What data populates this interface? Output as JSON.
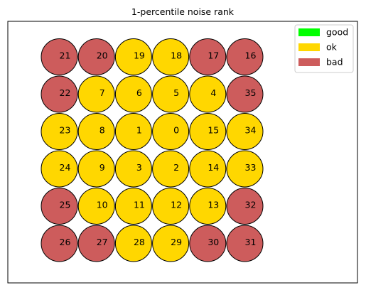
{
  "chart_data": {
    "type": "scatter",
    "title": "1-percentile noise rank",
    "xlabel": "",
    "ylabel": "",
    "grid": false,
    "legend_position": "top-right",
    "categories": [
      "good",
      "ok",
      "bad"
    ],
    "colors": {
      "good": "#00ff00",
      "ok": "#ffd700",
      "bad": "#cd5c5c"
    },
    "legend": [
      {
        "label": "good",
        "status": "good"
      },
      {
        "label": "ok",
        "status": "ok"
      },
      {
        "label": "bad",
        "status": "bad"
      }
    ],
    "grid_cols": 6,
    "grid_rows": 6,
    "cells": [
      {
        "id": "21",
        "row": 0,
        "col": 0,
        "status": "bad"
      },
      {
        "id": "20",
        "row": 0,
        "col": 1,
        "status": "bad"
      },
      {
        "id": "19",
        "row": 0,
        "col": 2,
        "status": "ok"
      },
      {
        "id": "18",
        "row": 0,
        "col": 3,
        "status": "ok"
      },
      {
        "id": "17",
        "row": 0,
        "col": 4,
        "status": "bad"
      },
      {
        "id": "16",
        "row": 0,
        "col": 5,
        "status": "bad"
      },
      {
        "id": "22",
        "row": 1,
        "col": 0,
        "status": "bad"
      },
      {
        "id": "7",
        "row": 1,
        "col": 1,
        "status": "ok"
      },
      {
        "id": "6",
        "row": 1,
        "col": 2,
        "status": "ok"
      },
      {
        "id": "5",
        "row": 1,
        "col": 3,
        "status": "ok"
      },
      {
        "id": "4",
        "row": 1,
        "col": 4,
        "status": "ok"
      },
      {
        "id": "35",
        "row": 1,
        "col": 5,
        "status": "bad"
      },
      {
        "id": "23",
        "row": 2,
        "col": 0,
        "status": "ok"
      },
      {
        "id": "8",
        "row": 2,
        "col": 1,
        "status": "ok"
      },
      {
        "id": "1",
        "row": 2,
        "col": 2,
        "status": "ok"
      },
      {
        "id": "0",
        "row": 2,
        "col": 3,
        "status": "ok"
      },
      {
        "id": "15",
        "row": 2,
        "col": 4,
        "status": "ok"
      },
      {
        "id": "34",
        "row": 2,
        "col": 5,
        "status": "ok"
      },
      {
        "id": "24",
        "row": 3,
        "col": 0,
        "status": "ok"
      },
      {
        "id": "9",
        "row": 3,
        "col": 1,
        "status": "ok"
      },
      {
        "id": "3",
        "row": 3,
        "col": 2,
        "status": "ok"
      },
      {
        "id": "2",
        "row": 3,
        "col": 3,
        "status": "ok"
      },
      {
        "id": "14",
        "row": 3,
        "col": 4,
        "status": "ok"
      },
      {
        "id": "33",
        "row": 3,
        "col": 5,
        "status": "ok"
      },
      {
        "id": "25",
        "row": 4,
        "col": 0,
        "status": "bad"
      },
      {
        "id": "10",
        "row": 4,
        "col": 1,
        "status": "ok"
      },
      {
        "id": "11",
        "row": 4,
        "col": 2,
        "status": "ok"
      },
      {
        "id": "12",
        "row": 4,
        "col": 3,
        "status": "ok"
      },
      {
        "id": "13",
        "row": 4,
        "col": 4,
        "status": "ok"
      },
      {
        "id": "32",
        "row": 4,
        "col": 5,
        "status": "bad"
      },
      {
        "id": "26",
        "row": 5,
        "col": 0,
        "status": "bad"
      },
      {
        "id": "27",
        "row": 5,
        "col": 1,
        "status": "bad"
      },
      {
        "id": "28",
        "row": 5,
        "col": 2,
        "status": "ok"
      },
      {
        "id": "29",
        "row": 5,
        "col": 3,
        "status": "ok"
      },
      {
        "id": "30",
        "row": 5,
        "col": 4,
        "status": "bad"
      },
      {
        "id": "31",
        "row": 5,
        "col": 5,
        "status": "bad"
      }
    ]
  }
}
